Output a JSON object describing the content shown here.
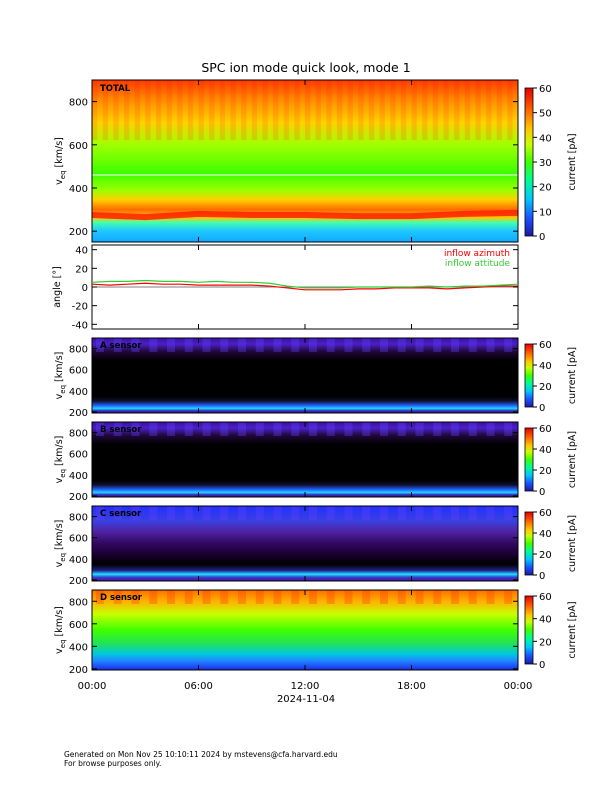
{
  "title": "SPC ion mode quick look, mode 1",
  "footer": {
    "line1": "Generated on Mon Nov 25 10:10:11 2024 by mstevens@cfa.harvard.edu",
    "line2": "For browse purposes only."
  },
  "chart_data": [
    {
      "type": "heatmap",
      "panel_label": "TOTAL",
      "ylabel": "v_eq [km/s]",
      "ylim": [
        150,
        900
      ],
      "yticks": [
        200,
        400,
        600,
        800
      ],
      "colorbar": {
        "label": "current [pA]",
        "range": [
          0,
          60
        ],
        "ticks": [
          0,
          10,
          20,
          30,
          40,
          50,
          60
        ]
      },
      "reference_line_v": 460,
      "bulk_speed_km_s": {
        "x_hours": [
          0,
          3,
          6,
          9,
          12,
          15,
          18,
          21,
          24
        ],
        "values": [
          275,
          265,
          280,
          275,
          275,
          270,
          270,
          280,
          285
        ]
      }
    },
    {
      "type": "line",
      "ylabel": "angle [°]",
      "ylim": [
        -45,
        45
      ],
      "yticks": [
        -40,
        -20,
        0,
        20,
        40
      ],
      "series": [
        {
          "name": "inflow azimuth",
          "color": "#ff0000",
          "x_hours": [
            0,
            1,
            2,
            3,
            4,
            5,
            6,
            7,
            8,
            9,
            10,
            11,
            12,
            13,
            14,
            15,
            16,
            17,
            18,
            19,
            20,
            21,
            22,
            23,
            24
          ],
          "values": [
            3,
            2,
            3,
            4,
            3,
            3,
            2,
            2,
            2,
            2,
            1,
            -1,
            -3,
            -3,
            -3,
            -2,
            -2,
            -1,
            -1,
            -1,
            -2,
            -1,
            0,
            1,
            1
          ]
        },
        {
          "name": "inflow attitude",
          "color": "#32cd32",
          "x_hours": [
            0,
            1,
            2,
            3,
            4,
            5,
            6,
            7,
            8,
            9,
            10,
            11,
            12,
            13,
            14,
            15,
            16,
            17,
            18,
            19,
            20,
            21,
            22,
            23,
            24
          ],
          "values": [
            5,
            6,
            6,
            7,
            6,
            6,
            5,
            6,
            5,
            5,
            4,
            1,
            -1,
            -1,
            -1,
            0,
            0,
            0,
            0,
            1,
            0,
            1,
            1,
            2,
            3
          ]
        }
      ]
    },
    {
      "type": "heatmap",
      "panel_label": "A sensor",
      "ylabel": "v_eq [km/s]",
      "ylim": [
        190,
        900
      ],
      "yticks": [
        200,
        400,
        600,
        800
      ],
      "colorbar": {
        "label": "current [pA]",
        "range": [
          0,
          60
        ],
        "ticks": [
          0,
          20,
          40,
          60
        ]
      }
    },
    {
      "type": "heatmap",
      "panel_label": "B sensor",
      "ylabel": "v_eq [km/s]",
      "ylim": [
        190,
        900
      ],
      "yticks": [
        200,
        400,
        600,
        800
      ],
      "colorbar": {
        "label": "current [pA]",
        "range": [
          0,
          60
        ],
        "ticks": [
          0,
          20,
          40,
          60
        ]
      }
    },
    {
      "type": "heatmap",
      "panel_label": "C sensor",
      "ylabel": "v_eq [km/s]",
      "ylim": [
        190,
        900
      ],
      "yticks": [
        200,
        400,
        600,
        800
      ],
      "colorbar": {
        "label": "current [pA]",
        "range": [
          0,
          60
        ],
        "ticks": [
          0,
          20,
          40,
          60
        ]
      }
    },
    {
      "type": "heatmap",
      "panel_label": "D sensor",
      "ylabel": "v_eq [km/s]",
      "ylim": [
        190,
        900
      ],
      "yticks": [
        200,
        400,
        600,
        800
      ],
      "colorbar": {
        "label": "current [pA]",
        "range": [
          0,
          60
        ],
        "ticks": [
          0,
          20,
          40,
          60
        ]
      }
    }
  ],
  "xaxis": {
    "tick_labels": [
      "00:00",
      "06:00",
      "12:00",
      "18:00",
      "00:00"
    ],
    "tick_hours": [
      0,
      6,
      12,
      18,
      24
    ],
    "date_label": "2024-11-04"
  }
}
